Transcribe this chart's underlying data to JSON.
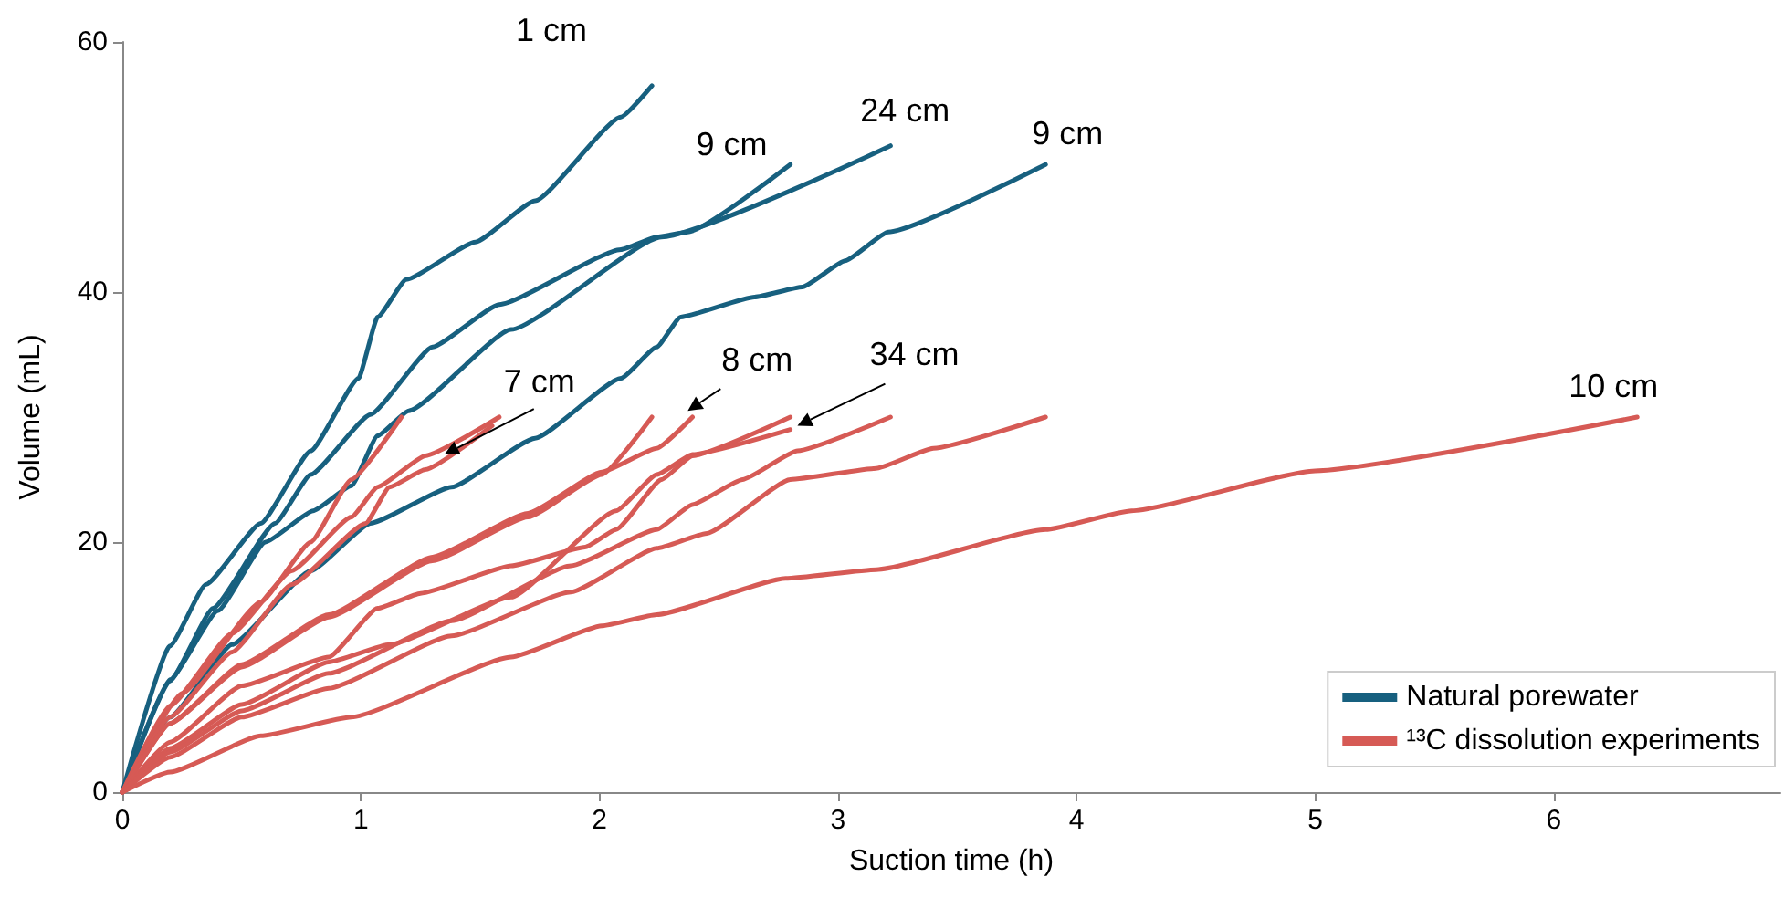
{
  "chart_data": {
    "type": "line",
    "xlabel": "Suction time (h)",
    "ylabel": "Volume (mL)",
    "xlim": [
      0,
      6.95
    ],
    "xticks": [
      0,
      1,
      2,
      3,
      4,
      5,
      6
    ],
    "ylim": [
      0,
      60
    ],
    "yticks": [
      0,
      20,
      40,
      60
    ],
    "grid": false,
    "legend": "bottom right",
    "marker": "none",
    "line_style": "solid",
    "series": [
      {
        "name": "Natural porewater",
        "color": "#17607f",
        "x": [
          0,
          0.2,
          0.35,
          0.58,
          0.79,
          0.99,
          1.07,
          1.19,
          1.48,
          1.73,
          2.09,
          2.22
        ],
        "values": [
          0,
          11.7,
          16.6,
          21.5,
          27.3,
          33.1,
          38,
          41,
          44,
          47.3,
          54,
          56.5
        ]
      },
      {
        "color": "#17607f",
        "x": [
          0,
          0.2,
          0.38,
          0.64,
          0.79,
          1.04,
          1.3,
          1.58,
          2.09,
          2.24,
          2.37,
          2.8
        ],
        "values": [
          0,
          8.9,
          14.7,
          21.5,
          25.4,
          30.2,
          35.6,
          39,
          43.4,
          44.4,
          44.8,
          50.2
        ]
      },
      {
        "color": "#17607f",
        "x": [
          0,
          0.2,
          0.4,
          0.6,
          0.8,
          0.96,
          1.07,
          1.2,
          1.63,
          2.26,
          3.22
        ],
        "values": [
          0,
          9,
          14.5,
          20,
          22.5,
          24.5,
          28.5,
          30.5,
          37,
          44.4,
          51.7
        ]
      },
      {
        "color": "#17607f",
        "x": [
          0,
          0.2,
          0.46,
          0.79,
          1.04,
          1.38,
          1.73,
          2.09,
          2.24,
          2.34,
          2.65,
          2.85,
          3.03,
          3.21,
          3.87
        ],
        "values": [
          0,
          6,
          11.8,
          17.7,
          21.5,
          24.4,
          28.3,
          33.1,
          35.6,
          38,
          39.6,
          40.4,
          42.5,
          44.8,
          50.2
        ]
      },
      {
        "name": "¹³C dissolution experiments",
        "color": "#d65a55",
        "x": [
          0,
          0.25,
          0.58,
          0.79,
          0.96,
          1.17
        ],
        "values": [
          0,
          7.9,
          15.2,
          20,
          25,
          30
        ]
      },
      {
        "color": "#d65a55",
        "x": [
          0,
          0.2,
          0.46,
          0.71,
          0.96,
          1.07,
          1.27,
          1.58
        ],
        "values": [
          0,
          6.9,
          12.7,
          17.7,
          22,
          24.4,
          26.9,
          30
        ]
      },
      {
        "color": "#d65a55",
        "x": [
          0,
          0.2,
          0.46,
          0.71,
          1.02,
          1.12,
          1.27,
          1.55
        ],
        "values": [
          0,
          6,
          11.2,
          16.6,
          21.5,
          24.4,
          25.8,
          29.3
        ]
      },
      {
        "color": "#d65a55",
        "x": [
          0,
          0.2,
          0.5,
          0.865,
          1.3,
          1.7,
          2.01,
          2.22
        ],
        "values": [
          0,
          5.5,
          10,
          14,
          18.5,
          22,
          25.4,
          30
        ]
      },
      {
        "color": "#d65a55",
        "x": [
          0,
          0.2,
          0.5,
          0.865,
          1.3,
          1.7,
          2.01,
          2.24,
          2.39
        ],
        "values": [
          0,
          5.5,
          10.2,
          14.2,
          18.8,
          22.3,
          25.6,
          27.5,
          30
        ]
      },
      {
        "color": "#d65a55",
        "x": [
          0,
          0.2,
          0.5,
          0.865,
          1.07,
          1.25,
          1.63,
          1.94,
          2.07,
          2.26,
          2.39,
          2.8
        ],
        "values": [
          0,
          4,
          8.5,
          10.8,
          14.7,
          15.9,
          18.1,
          19.6,
          21,
          25,
          26.9,
          30
        ]
      },
      {
        "color": "#d65a55",
        "x": [
          0,
          0.2,
          0.5,
          0.865,
          1.12,
          1.63,
          2.07,
          2.24,
          2.39,
          2.8
        ],
        "values": [
          0,
          3.5,
          7,
          10.4,
          11.8,
          15.6,
          22.5,
          25.4,
          27,
          29
        ]
      },
      {
        "color": "#d65a55",
        "x": [
          0,
          0.2,
          0.5,
          0.865,
          1.38,
          1.88,
          2.24,
          2.39,
          2.6,
          2.83,
          3.22
        ],
        "values": [
          0,
          3.2,
          6.5,
          9.5,
          13.7,
          18.1,
          21,
          23,
          25,
          27.3,
          30
        ]
      },
      {
        "color": "#d65a55",
        "x": [
          0,
          0.2,
          0.5,
          0.865,
          1.38,
          1.88,
          2.24,
          2.45,
          2.8,
          3.16,
          3.4,
          3.87
        ],
        "values": [
          0,
          2.8,
          6,
          8.3,
          12.5,
          16,
          19.5,
          20.7,
          25,
          25.9,
          27.5,
          30
        ]
      },
      {
        "color": "#d65a55",
        "x": [
          0,
          0.2,
          0.58,
          0.96,
          1.63,
          2.01,
          2.24,
          2.78,
          3.16,
          3.87,
          4.23,
          5,
          6.35
        ],
        "values": [
          0,
          1.6,
          4.5,
          6,
          10.8,
          13.3,
          14.2,
          17.1,
          17.8,
          21,
          22.5,
          25.7,
          30
        ]
      }
    ],
    "annotations": [
      {
        "text": "1 cm",
        "x": 2.22,
        "y": 56.5
      },
      {
        "text": "9 cm",
        "x": 2.8,
        "y": 50.2
      },
      {
        "text": "24 cm",
        "x": 3.22,
        "y": 51.7
      },
      {
        "text": "9 cm",
        "x": 3.87,
        "y": 50.2
      },
      {
        "text": "10 cm",
        "x": 6.35,
        "y": 30
      },
      {
        "text": "7 cm",
        "x": 1.35,
        "y": 27
      },
      {
        "text": "8 cm",
        "x": 2.37,
        "y": 30.5
      },
      {
        "text": "34 cm",
        "x": 2.83,
        "y": 29.3
      }
    ]
  }
}
